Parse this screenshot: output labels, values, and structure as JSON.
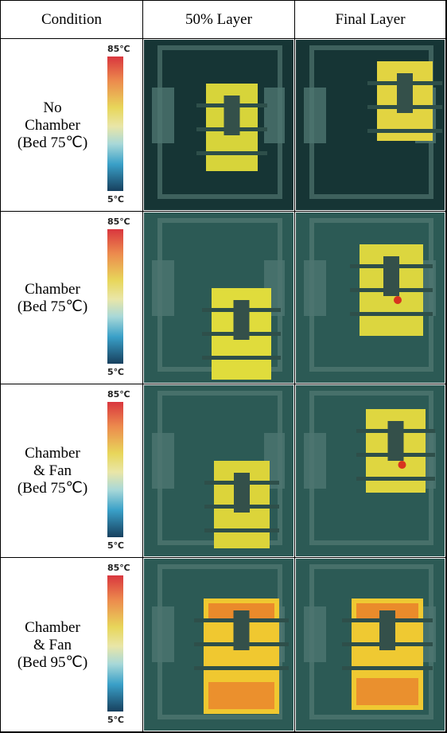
{
  "header": [
    "Condition",
    "50% Layer",
    "Final Layer"
  ],
  "rows": [
    {
      "condition": [
        "No",
        "Chamber",
        "(Bed 75℃)"
      ],
      "scale_max": "85℃",
      "scale_min": "5℃"
    },
    {
      "condition": [
        "Chamber",
        "(Bed 75℃)"
      ],
      "scale_max": "85℃",
      "scale_min": "5℃"
    },
    {
      "condition": [
        "Chamber",
        "& Fan",
        "(Bed 75℃)"
      ],
      "scale_max": "85℃",
      "scale_min": "5℃"
    },
    {
      "condition": [
        "Chamber",
        "& Fan",
        "(Bed 95℃)"
      ],
      "scale_max": "85℃",
      "scale_min": "5℃"
    }
  ]
}
